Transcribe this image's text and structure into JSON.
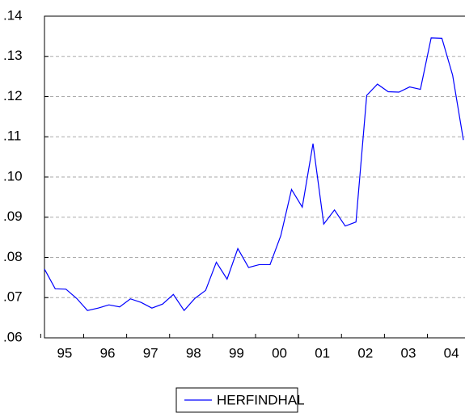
{
  "chart_data": {
    "type": "line",
    "categories": [
      "95",
      null,
      null,
      null,
      "96",
      null,
      null,
      null,
      "97",
      null,
      null,
      null,
      "98",
      null,
      null,
      null,
      "99",
      null,
      null,
      null,
      "00",
      null,
      null,
      null,
      "01",
      null,
      null,
      null,
      "02",
      null,
      null,
      null,
      "03",
      null,
      null,
      null,
      "04",
      null,
      null,
      null
    ],
    "series": [
      {
        "name": "HERFINDHAL",
        "color": "#0000ff",
        "values": [
          0.0771,
          0.0722,
          0.0721,
          0.0698,
          0.0668,
          0.0674,
          0.0682,
          0.0677,
          0.0697,
          0.0688,
          0.0674,
          0.0684,
          0.0708,
          0.0668,
          0.0698,
          0.0718,
          0.0788,
          0.0746,
          0.0822,
          0.0775,
          0.0782,
          0.0782,
          0.0854,
          0.0969,
          0.0925,
          0.1083,
          0.0883,
          0.0918,
          0.0878,
          0.0888,
          0.1203,
          0.1231,
          0.1212,
          0.1211,
          0.1224,
          0.1218,
          0.1346,
          0.1345,
          0.1253,
          0.1092
        ]
      }
    ],
    "ylim": [
      0.06,
      0.14
    ],
    "yticks": [
      {
        "value": 0.06,
        "label": ".06"
      },
      {
        "value": 0.07,
        "label": ".07"
      },
      {
        "value": 0.08,
        "label": ".08"
      },
      {
        "value": 0.09,
        "label": ".09"
      },
      {
        "value": 0.1,
        "label": ".10"
      },
      {
        "value": 0.11,
        "label": ".11"
      },
      {
        "value": 0.12,
        "label": ".12"
      },
      {
        "value": 0.13,
        "label": ".13"
      },
      {
        "value": 0.14,
        "label": ".14"
      }
    ],
    "grid": true
  }
}
